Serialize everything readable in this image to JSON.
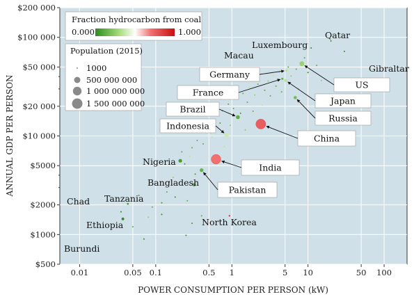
{
  "chart_data": {
    "type": "scatter",
    "title": "",
    "xlabel": "POWER CONSUMPTION PER PERSON (kW)",
    "ylabel": "ANNUAL GDP PER PERSON",
    "x_scale": "log",
    "y_scale": "log",
    "xlim": [
      0.0055,
      200
    ],
    "ylim": [
      500,
      200000
    ],
    "x_ticks": [
      {
        "value": 0.01,
        "label": "0.01"
      },
      {
        "value": 0.05,
        "label": "0.05"
      },
      {
        "value": 0.1,
        "label": "0.1"
      },
      {
        "value": 0.5,
        "label": "0.5"
      },
      {
        "value": 1,
        "label": "1"
      },
      {
        "value": 5,
        "label": "5"
      },
      {
        "value": 10,
        "label": "10"
      },
      {
        "value": 50,
        "label": "50"
      },
      {
        "value": 100,
        "label": "100"
      }
    ],
    "y_ticks": [
      {
        "value": 500,
        "label": "$500"
      },
      {
        "value": 1000,
        "label": "$1000"
      },
      {
        "value": 2000,
        "label": "$2000"
      },
      {
        "value": 5000,
        "label": "$5000"
      },
      {
        "value": 10000,
        "label": "$10 000"
      },
      {
        "value": 20000,
        "label": "$20 000"
      },
      {
        "value": 50000,
        "label": "$50 000"
      },
      {
        "value": 100000,
        "label": "$100 000"
      },
      {
        "value": 200000,
        "label": "$200 000"
      }
    ],
    "grid": true,
    "colorbar": {
      "title": "Fraction hydrocarbon from coal",
      "min_label": "0.000",
      "max_label": "1.000",
      "colors": [
        "#2e8b1f",
        "#a6dd7a",
        "#ffffff",
        "#f07070",
        "#c81010"
      ]
    },
    "size_legend": {
      "title": "Population (2015)",
      "entries": [
        "1000",
        "500 000 000",
        "1 000 000 000",
        "1 500 000 000"
      ],
      "radii": [
        1,
        4.5,
        6.2,
        7.5
      ]
    },
    "labeled_points": [
      {
        "name": "Nigeria",
        "x": 0.21,
        "y": 5600,
        "coal": 0.05,
        "pop": 182000000
      },
      {
        "name": "Bangladesh",
        "x": 0.32,
        "y": 3200,
        "coal": 0.08,
        "pop": 160000000
      },
      {
        "name": "Pakistan",
        "x": 0.4,
        "y": 4500,
        "coal": 0.12,
        "pop": 190000000
      },
      {
        "name": "India",
        "x": 0.62,
        "y": 5800,
        "coal": 0.75,
        "pop": 1300000000
      },
      {
        "name": "Indonesia",
        "x": 0.85,
        "y": 10200,
        "coal": 0.35,
        "pop": 258000000
      },
      {
        "name": "Brazil",
        "x": 1.2,
        "y": 15500,
        "coal": 0.1,
        "pop": 205000000
      },
      {
        "name": "China",
        "x": 2.4,
        "y": 13200,
        "coal": 0.8,
        "pop": 1370000000
      },
      {
        "name": "France",
        "x": 4.6,
        "y": 38000,
        "coal": 0.12,
        "pop": 66000000
      },
      {
        "name": "Germany",
        "x": 5.2,
        "y": 46000,
        "coal": 0.3,
        "pop": 81000000
      },
      {
        "name": "US",
        "x": 8.3,
        "y": 54000,
        "coal": 0.22,
        "pop": 321000000
      },
      {
        "name": "Japan",
        "x": 5.1,
        "y": 36500,
        "coal": 0.3,
        "pop": 127000000
      },
      {
        "name": "Russia",
        "x": 6.8,
        "y": 24500,
        "coal": 0.15,
        "pop": 144000000
      },
      {
        "name": "North Korea",
        "x": 0.93,
        "y": 1550,
        "coal": 0.95,
        "pop": 25000000
      },
      {
        "name": "Tanzania",
        "x": 0.043,
        "y": 2050,
        "coal": 0.05,
        "pop": 53000000
      },
      {
        "name": "Ethiopia",
        "x": 0.037,
        "y": 1440,
        "coal": 0.0,
        "pop": 99000000
      }
    ],
    "text_only_labels": [
      {
        "name": "Qatar",
        "x": 26,
        "y": 112000
      },
      {
        "name": "Luxembourg",
        "x": 8.5,
        "y": 83000
      },
      {
        "name": "Macau",
        "x": 1.5,
        "y": 65000
      },
      {
        "name": "Gibraltar",
        "x": 97,
        "y": 52000
      },
      {
        "name": "Chad",
        "x": 0.009,
        "y": 2000
      },
      {
        "name": "Burundi",
        "x": 0.009,
        "y": 820
      }
    ],
    "other_points": [
      [
        0.05,
        1200,
        0.1,
        8000000
      ],
      [
        0.06,
        2500,
        0.05,
        12000000
      ],
      [
        0.07,
        900,
        0.0,
        6000000
      ],
      [
        0.09,
        1900,
        0.1,
        9000000
      ],
      [
        0.12,
        1600,
        0.0,
        15000000
      ],
      [
        0.14,
        2700,
        0.1,
        20000000
      ],
      [
        0.15,
        3400,
        0.05,
        25000000
      ],
      [
        0.17,
        3800,
        0.2,
        14000000
      ],
      [
        0.18,
        2400,
        0.0,
        7000000
      ],
      [
        0.22,
        6900,
        0.1,
        10000000
      ],
      [
        0.24,
        5200,
        0.05,
        30000000
      ],
      [
        0.26,
        2200,
        0.1,
        11000000
      ],
      [
        0.28,
        6200,
        0.3,
        12000000
      ],
      [
        0.3,
        7600,
        0.1,
        6000000
      ],
      [
        0.33,
        4100,
        0.05,
        20000000
      ],
      [
        0.35,
        9000,
        0.1,
        8000000
      ],
      [
        0.38,
        11000,
        0.2,
        16000000
      ],
      [
        0.42,
        8300,
        0.1,
        9000000
      ],
      [
        0.45,
        12500,
        0.05,
        18000000
      ],
      [
        0.5,
        14000,
        0.1,
        5000000
      ],
      [
        0.55,
        9800,
        0.3,
        7000000
      ],
      [
        0.6,
        11800,
        0.1,
        22000000
      ],
      [
        0.65,
        16500,
        0.2,
        10000000
      ],
      [
        0.7,
        13500,
        0.05,
        6000000
      ],
      [
        0.75,
        18000,
        0.1,
        12000000
      ],
      [
        0.8,
        7800,
        0.3,
        9000000
      ],
      [
        0.9,
        21000,
        0.1,
        14000000
      ],
      [
        0.95,
        12800,
        0.2,
        8000000
      ],
      [
        1.05,
        19000,
        0.1,
        10000000
      ],
      [
        1.1,
        24500,
        0.3,
        6000000
      ],
      [
        1.3,
        17000,
        0.05,
        20000000
      ],
      [
        1.4,
        27000,
        0.1,
        9000000
      ],
      [
        1.5,
        11500,
        0.2,
        12000000
      ],
      [
        1.6,
        22000,
        0.1,
        8000000
      ],
      [
        1.7,
        31000,
        0.3,
        5000000
      ],
      [
        1.9,
        17800,
        0.1,
        15000000
      ],
      [
        2.0,
        26000,
        0.2,
        10000000
      ],
      [
        2.2,
        33500,
        0.1,
        7000000
      ],
      [
        2.5,
        20500,
        0.3,
        9000000
      ],
      [
        2.7,
        29000,
        0.1,
        11000000
      ],
      [
        3.0,
        36000,
        0.2,
        6000000
      ],
      [
        3.2,
        25500,
        0.1,
        8000000
      ],
      [
        3.5,
        41000,
        0.3,
        7000000
      ],
      [
        3.8,
        32000,
        0.1,
        10000000
      ],
      [
        4.2,
        44500,
        0.2,
        5000000
      ],
      [
        4.5,
        28000,
        0.1,
        9000000
      ],
      [
        5.5,
        50000,
        0.1,
        6000000
      ],
      [
        6.0,
        40500,
        0.2,
        8000000
      ],
      [
        7.0,
        47500,
        0.1,
        5000000
      ],
      [
        7.5,
        30000,
        0.2,
        7000000
      ],
      [
        9.0,
        62000,
        0.1,
        4000000
      ],
      [
        10,
        44000,
        0.0,
        5000000
      ],
      [
        11,
        78000,
        0.0,
        3000000
      ],
      [
        13,
        52000,
        0.1,
        2000000
      ],
      [
        15,
        36500,
        0.2,
        3000000
      ],
      [
        20,
        92000,
        0.0,
        2000000
      ],
      [
        25,
        110000,
        0.0,
        2000000
      ],
      [
        30,
        72000,
        0.0,
        1000000
      ],
      [
        0.3,
        1300,
        0.05,
        5000000
      ],
      [
        0.4,
        1550,
        0.1,
        4000000
      ],
      [
        0.25,
        980,
        0.0,
        3000000
      ],
      [
        0.08,
        1500,
        0.2,
        6000000
      ],
      [
        0.12,
        2100,
        0.05,
        5000000
      ],
      [
        0.035,
        1700,
        0.0,
        4000000
      ]
    ]
  }
}
